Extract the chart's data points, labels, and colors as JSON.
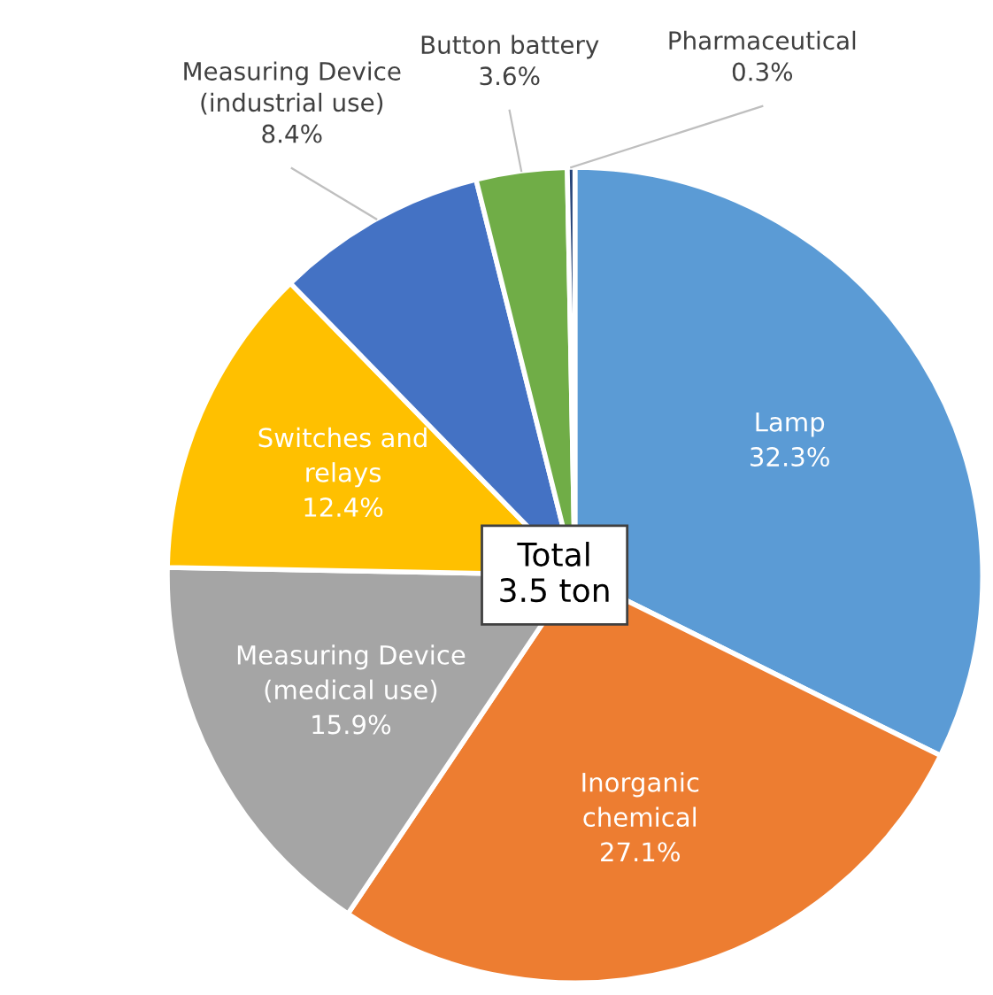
{
  "chart_data": {
    "type": "pie",
    "categories": [
      "Lamp",
      "Inorganic\nchemical",
      "Measuring Device\n(medical use)",
      "Switches and\nrelays",
      "Measuring Device\n(industrial use)",
      "Button battery",
      "Pharmaceutical"
    ],
    "values": [
      32.3,
      27.1,
      15.9,
      12.4,
      8.4,
      3.6,
      0.3
    ],
    "value_labels": [
      "32.3%",
      "27.1%",
      "15.9%",
      "12.4%",
      "8.4%",
      "3.6%",
      "0.3%"
    ],
    "colors": [
      "#5b9bd5",
      "#ed7d31",
      "#a5a5a5",
      "#ffc000",
      "#4472c4",
      "#70ad47",
      "#264478"
    ],
    "annotations": [
      "Total\n3.5 ton"
    ]
  }
}
